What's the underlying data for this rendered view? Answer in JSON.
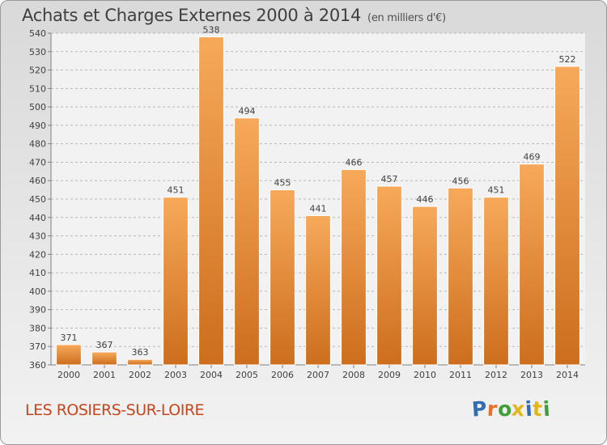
{
  "header": {
    "title": "Achats et Charges Externes 2000 à 2014",
    "unit": "(en milliers d'€)"
  },
  "footer": {
    "commune": "LES ROSIERS-SUR-LOIRE",
    "logo_text": "Proxiti"
  },
  "colors": {
    "bar_light": "#f7a95a",
    "bar_dark": "#cc6e1d",
    "commune_text": "#c4461d",
    "logo_letters": [
      "#2f6db5",
      "#e8702a",
      "#3f9e3a",
      "#e2b61c",
      "#2f6db5",
      "#e2b61c",
      "#3f9e3a"
    ]
  },
  "chart_data": {
    "type": "bar",
    "title": "Achats et Charges Externes 2000 à 2014",
    "unit": "(en milliers d'€)",
    "categories": [
      "2000",
      "2001",
      "2002",
      "2003",
      "2004",
      "2005",
      "2006",
      "2007",
      "2008",
      "2009",
      "2010",
      "2011",
      "2012",
      "2013",
      "2014"
    ],
    "values": [
      371,
      367,
      363,
      451,
      538,
      494,
      455,
      441,
      466,
      457,
      446,
      456,
      451,
      469,
      522
    ],
    "ylim": [
      360,
      540
    ],
    "ytick_step": 10,
    "grid": true,
    "legend": "none"
  }
}
